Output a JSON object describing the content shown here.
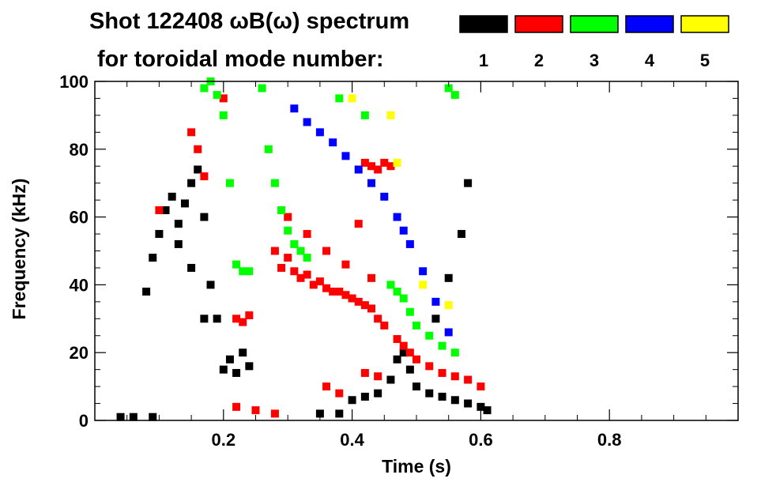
{
  "chart_data": {
    "type": "scatter",
    "title_line1": "Shot 122408 ωB(ω) spectrum",
    "title_line2": "for toroidal mode number:",
    "xlabel": "Time (s)",
    "ylabel": "Frequency (kHz)",
    "xlim": [
      0.0,
      1.0
    ],
    "ylim": [
      0,
      100
    ],
    "xticks": [
      0.2,
      0.4,
      0.6,
      0.8
    ],
    "xtick_labels": [
      "0.2",
      "0.4",
      "0.6",
      "0.8"
    ],
    "yticks": [
      0,
      20,
      40,
      60,
      80,
      100
    ],
    "ytick_labels": [
      "0",
      "20",
      "40",
      "60",
      "80",
      "100"
    ],
    "legend_position": "top-right",
    "series": [
      {
        "name": "1",
        "color": "#000000",
        "points": [
          [
            0.08,
            38
          ],
          [
            0.09,
            48
          ],
          [
            0.1,
            55
          ],
          [
            0.11,
            62
          ],
          [
            0.12,
            66
          ],
          [
            0.13,
            58
          ],
          [
            0.14,
            64
          ],
          [
            0.15,
            70
          ],
          [
            0.16,
            74
          ],
          [
            0.17,
            60
          ],
          [
            0.18,
            40
          ],
          [
            0.19,
            30
          ],
          [
            0.2,
            15
          ],
          [
            0.21,
            18
          ],
          [
            0.22,
            14
          ],
          [
            0.23,
            20
          ],
          [
            0.24,
            16
          ],
          [
            0.15,
            45
          ],
          [
            0.17,
            30
          ],
          [
            0.13,
            52
          ],
          [
            0.4,
            6
          ],
          [
            0.42,
            7
          ],
          [
            0.44,
            8
          ],
          [
            0.46,
            12
          ],
          [
            0.47,
            18
          ],
          [
            0.48,
            20
          ],
          [
            0.49,
            15
          ],
          [
            0.5,
            10
          ],
          [
            0.52,
            8
          ],
          [
            0.54,
            7
          ],
          [
            0.56,
            6
          ],
          [
            0.58,
            5
          ],
          [
            0.6,
            4
          ],
          [
            0.61,
            3
          ],
          [
            0.04,
            1
          ],
          [
            0.06,
            1
          ],
          [
            0.09,
            1
          ],
          [
            0.35,
            2
          ],
          [
            0.38,
            2
          ],
          [
            0.53,
            30
          ],
          [
            0.55,
            42
          ],
          [
            0.57,
            55
          ],
          [
            0.58,
            70
          ]
        ]
      },
      {
        "name": "2",
        "color": "#ff0000",
        "points": [
          [
            0.1,
            62
          ],
          [
            0.15,
            85
          ],
          [
            0.16,
            80
          ],
          [
            0.17,
            72
          ],
          [
            0.2,
            95
          ],
          [
            0.22,
            30
          ],
          [
            0.23,
            29
          ],
          [
            0.24,
            31
          ],
          [
            0.28,
            50
          ],
          [
            0.29,
            45
          ],
          [
            0.3,
            48
          ],
          [
            0.31,
            44
          ],
          [
            0.32,
            42
          ],
          [
            0.33,
            43
          ],
          [
            0.34,
            40
          ],
          [
            0.35,
            41
          ],
          [
            0.36,
            39
          ],
          [
            0.37,
            38
          ],
          [
            0.38,
            38
          ],
          [
            0.39,
            37
          ],
          [
            0.4,
            36
          ],
          [
            0.41,
            35
          ],
          [
            0.42,
            34
          ],
          [
            0.43,
            33
          ],
          [
            0.44,
            30
          ],
          [
            0.45,
            28
          ],
          [
            0.3,
            60
          ],
          [
            0.33,
            55
          ],
          [
            0.36,
            50
          ],
          [
            0.39,
            46
          ],
          [
            0.41,
            58
          ],
          [
            0.43,
            42
          ],
          [
            0.47,
            24
          ],
          [
            0.48,
            22
          ],
          [
            0.49,
            20
          ],
          [
            0.5,
            18
          ],
          [
            0.52,
            16
          ],
          [
            0.54,
            14
          ],
          [
            0.56,
            13
          ],
          [
            0.58,
            12
          ],
          [
            0.6,
            10
          ],
          [
            0.42,
            76
          ],
          [
            0.43,
            75
          ],
          [
            0.44,
            74
          ],
          [
            0.45,
            76
          ],
          [
            0.46,
            75
          ],
          [
            0.42,
            14
          ],
          [
            0.44,
            13
          ],
          [
            0.22,
            4
          ],
          [
            0.25,
            3
          ],
          [
            0.28,
            2
          ],
          [
            0.36,
            10
          ],
          [
            0.38,
            8
          ]
        ]
      },
      {
        "name": "3",
        "color": "#00ff00",
        "points": [
          [
            0.17,
            98
          ],
          [
            0.18,
            100
          ],
          [
            0.19,
            96
          ],
          [
            0.2,
            90
          ],
          [
            0.21,
            70
          ],
          [
            0.22,
            46
          ],
          [
            0.23,
            44
          ],
          [
            0.24,
            44
          ],
          [
            0.26,
            98
          ],
          [
            0.27,
            80
          ],
          [
            0.28,
            70
          ],
          [
            0.29,
            62
          ],
          [
            0.3,
            56
          ],
          [
            0.31,
            52
          ],
          [
            0.32,
            50
          ],
          [
            0.33,
            48
          ],
          [
            0.46,
            40
          ],
          [
            0.47,
            38
          ],
          [
            0.48,
            36
          ],
          [
            0.49,
            32
          ],
          [
            0.5,
            28
          ],
          [
            0.52,
            25
          ],
          [
            0.54,
            22
          ],
          [
            0.56,
            20
          ],
          [
            0.38,
            95
          ],
          [
            0.42,
            90
          ],
          [
            0.55,
            98
          ],
          [
            0.56,
            96
          ]
        ]
      },
      {
        "name": "4",
        "color": "#0000ff",
        "points": [
          [
            0.31,
            92
          ],
          [
            0.33,
            88
          ],
          [
            0.35,
            85
          ],
          [
            0.37,
            82
          ],
          [
            0.39,
            78
          ],
          [
            0.41,
            74
          ],
          [
            0.43,
            70
          ],
          [
            0.45,
            66
          ],
          [
            0.47,
            60
          ],
          [
            0.48,
            56
          ],
          [
            0.49,
            52
          ],
          [
            0.51,
            44
          ],
          [
            0.53,
            35
          ],
          [
            0.55,
            26
          ]
        ]
      },
      {
        "name": "5",
        "color": "#ffff00",
        "points": [
          [
            0.4,
            95
          ],
          [
            0.46,
            90
          ],
          [
            0.47,
            76
          ],
          [
            0.51,
            40
          ],
          [
            0.55,
            34
          ]
        ]
      }
    ]
  }
}
